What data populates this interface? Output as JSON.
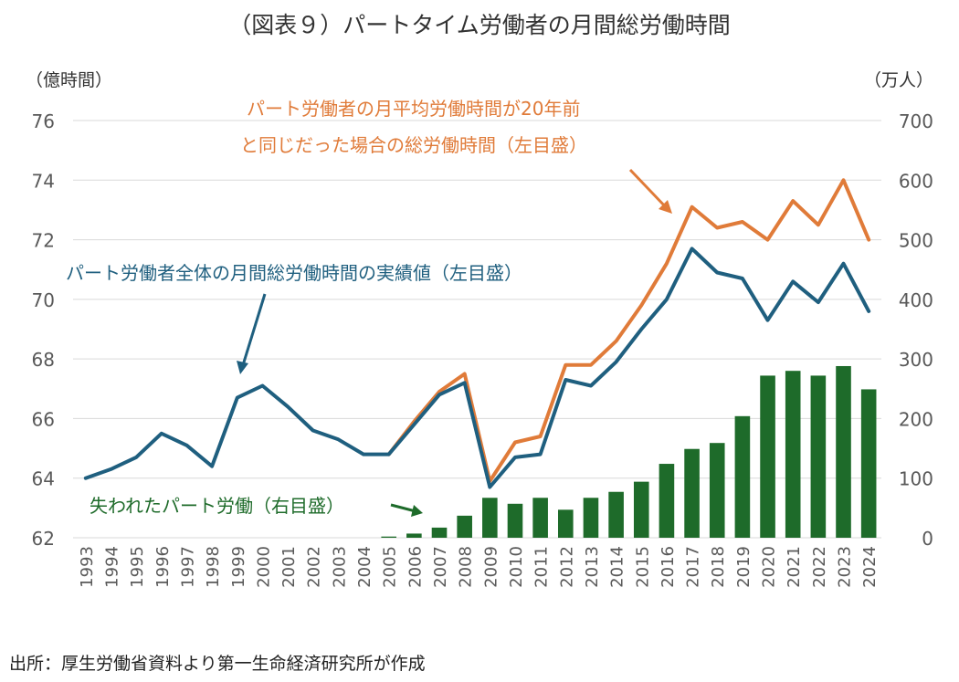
{
  "chart_data": {
    "type": "bar+line",
    "title": "（図表９）パートタイム労働者の月間総労働時間",
    "y_left_label": "（億時間）",
    "y_right_label": "（万人）",
    "y_left_range": [
      62,
      76
    ],
    "y_left_ticks": [
      "62",
      "64",
      "66",
      "68",
      "70",
      "72",
      "74",
      "76"
    ],
    "y_right_range": [
      0,
      700
    ],
    "y_right_ticks": [
      "0",
      "100",
      "200",
      "300",
      "400",
      "500",
      "600",
      "700"
    ],
    "grid": true,
    "categories": [
      "1993",
      "1994",
      "1995",
      "1996",
      "1997",
      "1998",
      "1999",
      "2000",
      "2001",
      "2002",
      "2003",
      "2004",
      "2005",
      "2006",
      "2007",
      "2008",
      "2009",
      "2010",
      "2011",
      "2012",
      "2013",
      "2014",
      "2015",
      "2016",
      "2017",
      "2018",
      "2019",
      "2020",
      "2021",
      "2022",
      "2023",
      "2024"
    ],
    "series": [
      {
        "name": "パート労働者全体の月間総労働時間の実績値（左目盛）",
        "axis": "left",
        "kind": "line",
        "values": [
          64.0,
          64.3,
          64.7,
          65.5,
          65.1,
          64.4,
          66.7,
          67.1,
          66.4,
          65.6,
          65.3,
          64.8,
          64.8,
          65.8,
          66.8,
          67.2,
          63.7,
          64.7,
          64.8,
          67.3,
          67.1,
          67.9,
          69.0,
          70.0,
          71.7,
          70.9,
          70.7,
          69.3,
          70.6,
          69.9,
          71.2,
          69.6
        ]
      },
      {
        "name": "パート労働者の月平均労働時間が20年前と同じだった場合の総労働時間（左目盛）",
        "axis": "left",
        "kind": "line",
        "start_index": 12,
        "values": [
          null,
          null,
          null,
          null,
          null,
          null,
          null,
          null,
          null,
          null,
          null,
          null,
          64.8,
          65.9,
          66.9,
          67.5,
          63.9,
          65.2,
          65.4,
          67.8,
          67.8,
          68.6,
          69.8,
          71.2,
          73.1,
          72.4,
          72.6,
          72.0,
          73.3,
          72.5,
          74.0,
          72.0
        ]
      },
      {
        "name": "失われたパート労働（右目盛）",
        "axis": "right",
        "kind": "bar",
        "values": [
          0,
          0,
          0,
          0,
          0,
          0,
          0,
          0,
          0,
          0,
          0,
          0,
          2,
          7,
          17,
          37,
          67,
          57,
          67,
          47,
          67,
          77,
          94,
          124,
          149,
          159,
          204,
          272,
          280,
          272,
          288,
          249
        ]
      }
    ],
    "annotations": {
      "orange_label_line1": "パート労働者の月平均労働時間が20年前",
      "orange_label_line2": "と同じだった場合の総労働時間（左目盛）",
      "blue_label": "パート労働者全体の月間総労働時間の実績値（左目盛）",
      "green_label": "失われたパート労働（右目盛）"
    },
    "source": "出所：厚生労働省資料より第一生命経済研究所が作成",
    "colors": {
      "blue_line": "#1f5f7f",
      "orange_line": "#e07b39",
      "bars": "#1e6b2a",
      "grid": "#d9d9d9",
      "tick_text": "#595959"
    }
  }
}
